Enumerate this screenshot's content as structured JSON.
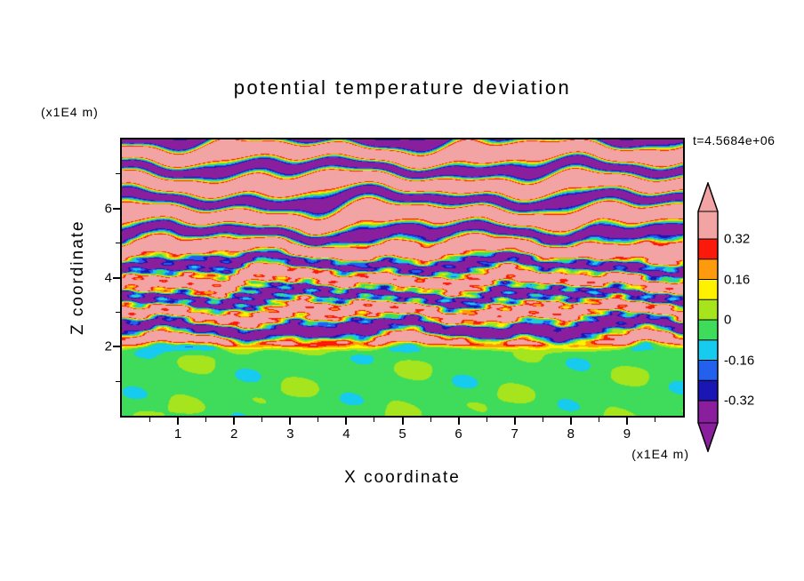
{
  "chart": {
    "title": "potential temperature deviation",
    "time_label": "t=4.5684e+06",
    "x_axis": {
      "label": "X coordinate",
      "unit": "(x1E4 m)",
      "range": [
        0,
        10
      ],
      "major_ticks": [
        1,
        2,
        3,
        4,
        5,
        6,
        7,
        8,
        9
      ],
      "minor_step": 0.5
    },
    "z_axis": {
      "label": "Z coordinate",
      "unit": "(x1E4 m)",
      "range": [
        0,
        8
      ],
      "major_ticks": [
        2,
        4,
        6
      ],
      "minor_ticks": [
        1,
        3,
        5,
        7
      ]
    },
    "colorbar": {
      "labels": [
        {
          "text": "0.32",
          "level": 8
        },
        {
          "text": "0.16",
          "level": 6
        },
        {
          "text": "0",
          "level": 4
        },
        {
          "text": "-0.16",
          "level": 2
        },
        {
          "text": "-0.32",
          "level": 0
        }
      ]
    }
  },
  "chart_data": {
    "type": "heatmap",
    "title": "potential temperature deviation",
    "xlabel": "X coordinate",
    "ylabel": "Z coordinate",
    "x_unit": "(x1E4 m)",
    "z_unit": "(x1E4 m)",
    "x_range": [
      0,
      10
    ],
    "z_range": [
      0,
      8
    ],
    "x_ticks": [
      1,
      2,
      3,
      4,
      5,
      6,
      7,
      8,
      9
    ],
    "z_ticks": [
      2,
      4,
      6
    ],
    "time_annotation": "t=4.5684e+06",
    "legend_position": "right",
    "value_levels": [
      -0.32,
      -0.24,
      -0.16,
      -0.08,
      0,
      0.08,
      0.16,
      0.24,
      0.32
    ],
    "palette": [
      "#8a1f9e",
      "#1a16b4",
      "#2360ee",
      "#16cbee",
      "#3edc5a",
      "#a6e41e",
      "#fef200",
      "#fd9a0d",
      "#fa190a",
      "#f2a3a3"
    ],
    "palette_meaning": "ascending value bands: <-0.32 purple, -0.32..-0.24 navy, -0.24..-0.16 blue, -0.16..-0.08 cyan, -0.08..0 green, 0..0.08 yellow-green, 0.08..0.16 yellow, 0.16..0.24 orange, 0.24..0.32 red, >0.32 pink",
    "colorbar_labels": [
      "0.32",
      "0.16",
      "0",
      "-0.16",
      "-0.32"
    ],
    "regions": [
      {
        "z_range": [
          0,
          2
        ],
        "description": "well-mixed boundary layer: deviation near zero, mostly green with yellow-green patches"
      },
      {
        "z_range": [
          2,
          5
        ],
        "description": "breaking gravity-wave layers: chaotic thin streaks spanning full range (red/orange/yellow and blue/navy/cyan)"
      },
      {
        "z_range": [
          5,
          8
        ],
        "description": "coherent horizontal wave bands alternating above +0.32 (pink) and below -0.32 (purple)"
      }
    ],
    "generator": {
      "stripe_freq_z": 6.8,
      "warp": [
        [
          14,
          1.7,
          1.0
        ],
        [
          31,
          0.6,
          0.65
        ],
        [
          57,
          -2.2,
          0.4
        ],
        [
          5,
          2.3,
          0.25
        ]
      ],
      "upper_amp": 0.75,
      "pos_bias": 0.05,
      "bias_max": 0.2,
      "mid_center": 3.5,
      "mid_width": 1.5,
      "mid_chaos": 0.32,
      "bl_top": 2.05,
      "lower_base": -0.03,
      "lower_var": 0.05
    }
  }
}
